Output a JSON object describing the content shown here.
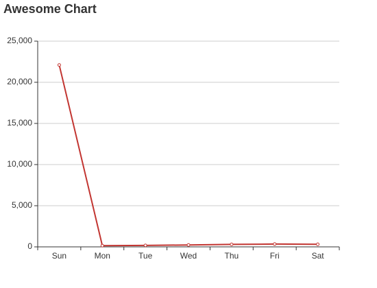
{
  "chart_data": {
    "type": "line",
    "title": "Awesome Chart",
    "categories": [
      "Sun",
      "Mon",
      "Tue",
      "Wed",
      "Thu",
      "Fri",
      "Sat"
    ],
    "series": [
      {
        "color": "#c23531",
        "values": [
          22100,
          150,
          180,
          230,
          300,
          340,
          310
        ]
      }
    ],
    "ylim": [
      0,
      25000
    ],
    "yticks": [
      0,
      {
        "value": 5000,
        "label": "5,000"
      },
      {
        "value": 10000,
        "label": "10,000"
      },
      {
        "value": 15000,
        "label": "15,000"
      },
      {
        "value": 20000,
        "label": "20,000"
      },
      {
        "value": 25000,
        "label": "25,000"
      }
    ],
    "grid": true
  }
}
